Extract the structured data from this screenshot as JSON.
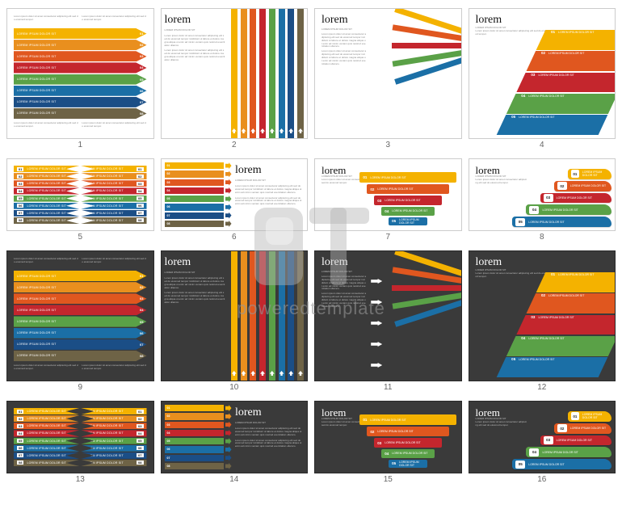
{
  "watermark": {
    "text": "poweredtemplate"
  },
  "palette8": [
    "#f4b200",
    "#e98f1e",
    "#e0571f",
    "#c4262d",
    "#5aa147",
    "#1b6fa6",
    "#1b4e86",
    "#6e6346"
  ],
  "palette5": [
    "#f4b200",
    "#e0571f",
    "#c4262d",
    "#5aa147",
    "#1b6fa6"
  ],
  "bar_label": "LOREM IPSUM DOLOR SIT",
  "numbers8": [
    "01",
    "02",
    "03",
    "04",
    "05",
    "06",
    "07",
    "08"
  ],
  "numbers5": [
    "01",
    "02",
    "03",
    "04",
    "05"
  ],
  "lorem_title": "lorem",
  "lorem_sub": "LOREM IPSUM DOLOR SIT",
  "para": "Lorem ipsum dolor sit amet consectetur adipiscing elit sed do eiusmod tempor incididunt ut labore et dolore magna aliqua ut enim ad minim veniam quis nostrud exercitation ullamco.",
  "para_short": "Lorem ipsum dolor sit amet consectetur adipiscing elit sed do eiusmod tempor.",
  "slides": [
    {
      "n": "1",
      "variant": "s1",
      "bg": "light"
    },
    {
      "n": "2",
      "variant": "s2a",
      "bg": "light"
    },
    {
      "n": "3",
      "variant": "s3",
      "bg": "light"
    },
    {
      "n": "4",
      "variant": "s4",
      "bg": "light"
    },
    {
      "n": "5",
      "variant": "s5",
      "bg": "light"
    },
    {
      "n": "6",
      "variant": "s6",
      "bg": "light"
    },
    {
      "n": "7",
      "variant": "s7",
      "bg": "light"
    },
    {
      "n": "8",
      "variant": "s8",
      "bg": "light"
    },
    {
      "n": "9",
      "variant": "s1",
      "bg": "dark"
    },
    {
      "n": "10",
      "variant": "s2a",
      "bg": "dark"
    },
    {
      "n": "11",
      "variant": "s3",
      "bg": "dark"
    },
    {
      "n": "12",
      "variant": "s4",
      "bg": "dark"
    },
    {
      "n": "13",
      "variant": "s5",
      "bg": "dark"
    },
    {
      "n": "14",
      "variant": "s6",
      "bg": "dark"
    },
    {
      "n": "15",
      "variant": "s7",
      "bg": "dark"
    },
    {
      "n": "16",
      "variant": "s8",
      "bg": "dark"
    }
  ],
  "pyramid_widths_pct": [
    40,
    55,
    70,
    85,
    100
  ],
  "step_widths_pct": [
    44,
    58,
    72,
    86,
    100
  ],
  "beam_y_top": [
    2,
    10,
    18,
    26,
    34
  ],
  "beam_y_mid": 40
}
